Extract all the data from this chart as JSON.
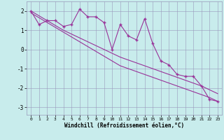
{
  "x_data": [
    0,
    1,
    2,
    3,
    4,
    5,
    6,
    7,
    8,
    9,
    10,
    11,
    12,
    13,
    14,
    15,
    16,
    17,
    18,
    19,
    20,
    21,
    22,
    23
  ],
  "y_zigzag": [
    2.0,
    1.3,
    1.5,
    1.5,
    1.2,
    1.3,
    2.1,
    1.7,
    1.7,
    1.4,
    0.0,
    1.3,
    0.7,
    0.5,
    1.6,
    0.3,
    -0.6,
    -0.8,
    -1.3,
    -1.4,
    -1.4,
    -1.9,
    -2.6,
    -2.7
  ],
  "y_line1": [
    2.0,
    1.75,
    1.5,
    1.25,
    1.0,
    0.8,
    0.6,
    0.4,
    0.2,
    0.0,
    -0.2,
    -0.4,
    -0.55,
    -0.7,
    -0.85,
    -1.0,
    -1.15,
    -1.3,
    -1.45,
    -1.6,
    -1.75,
    -1.9,
    -2.1,
    -2.3
  ],
  "y_line2": [
    1.9,
    1.65,
    1.4,
    1.15,
    0.9,
    0.65,
    0.4,
    0.15,
    -0.1,
    -0.35,
    -0.6,
    -0.85,
    -1.0,
    -1.15,
    -1.3,
    -1.45,
    -1.6,
    -1.75,
    -1.9,
    -2.05,
    -2.2,
    -2.35,
    -2.5,
    -2.7
  ],
  "bg_color": "#c8ecec",
  "line_color": "#993399",
  "grid_color": "#9999bb",
  "xlabel": "Windchill (Refroidissement éolien,°C)",
  "xlim": [
    -0.5,
    23.5
  ],
  "ylim": [
    -3.4,
    2.5
  ],
  "yticks": [
    -3,
    -2,
    -1,
    0,
    1,
    2
  ],
  "xticks": [
    0,
    1,
    2,
    3,
    4,
    5,
    6,
    7,
    8,
    9,
    10,
    11,
    12,
    13,
    14,
    15,
    16,
    17,
    18,
    19,
    20,
    21,
    22,
    23
  ]
}
